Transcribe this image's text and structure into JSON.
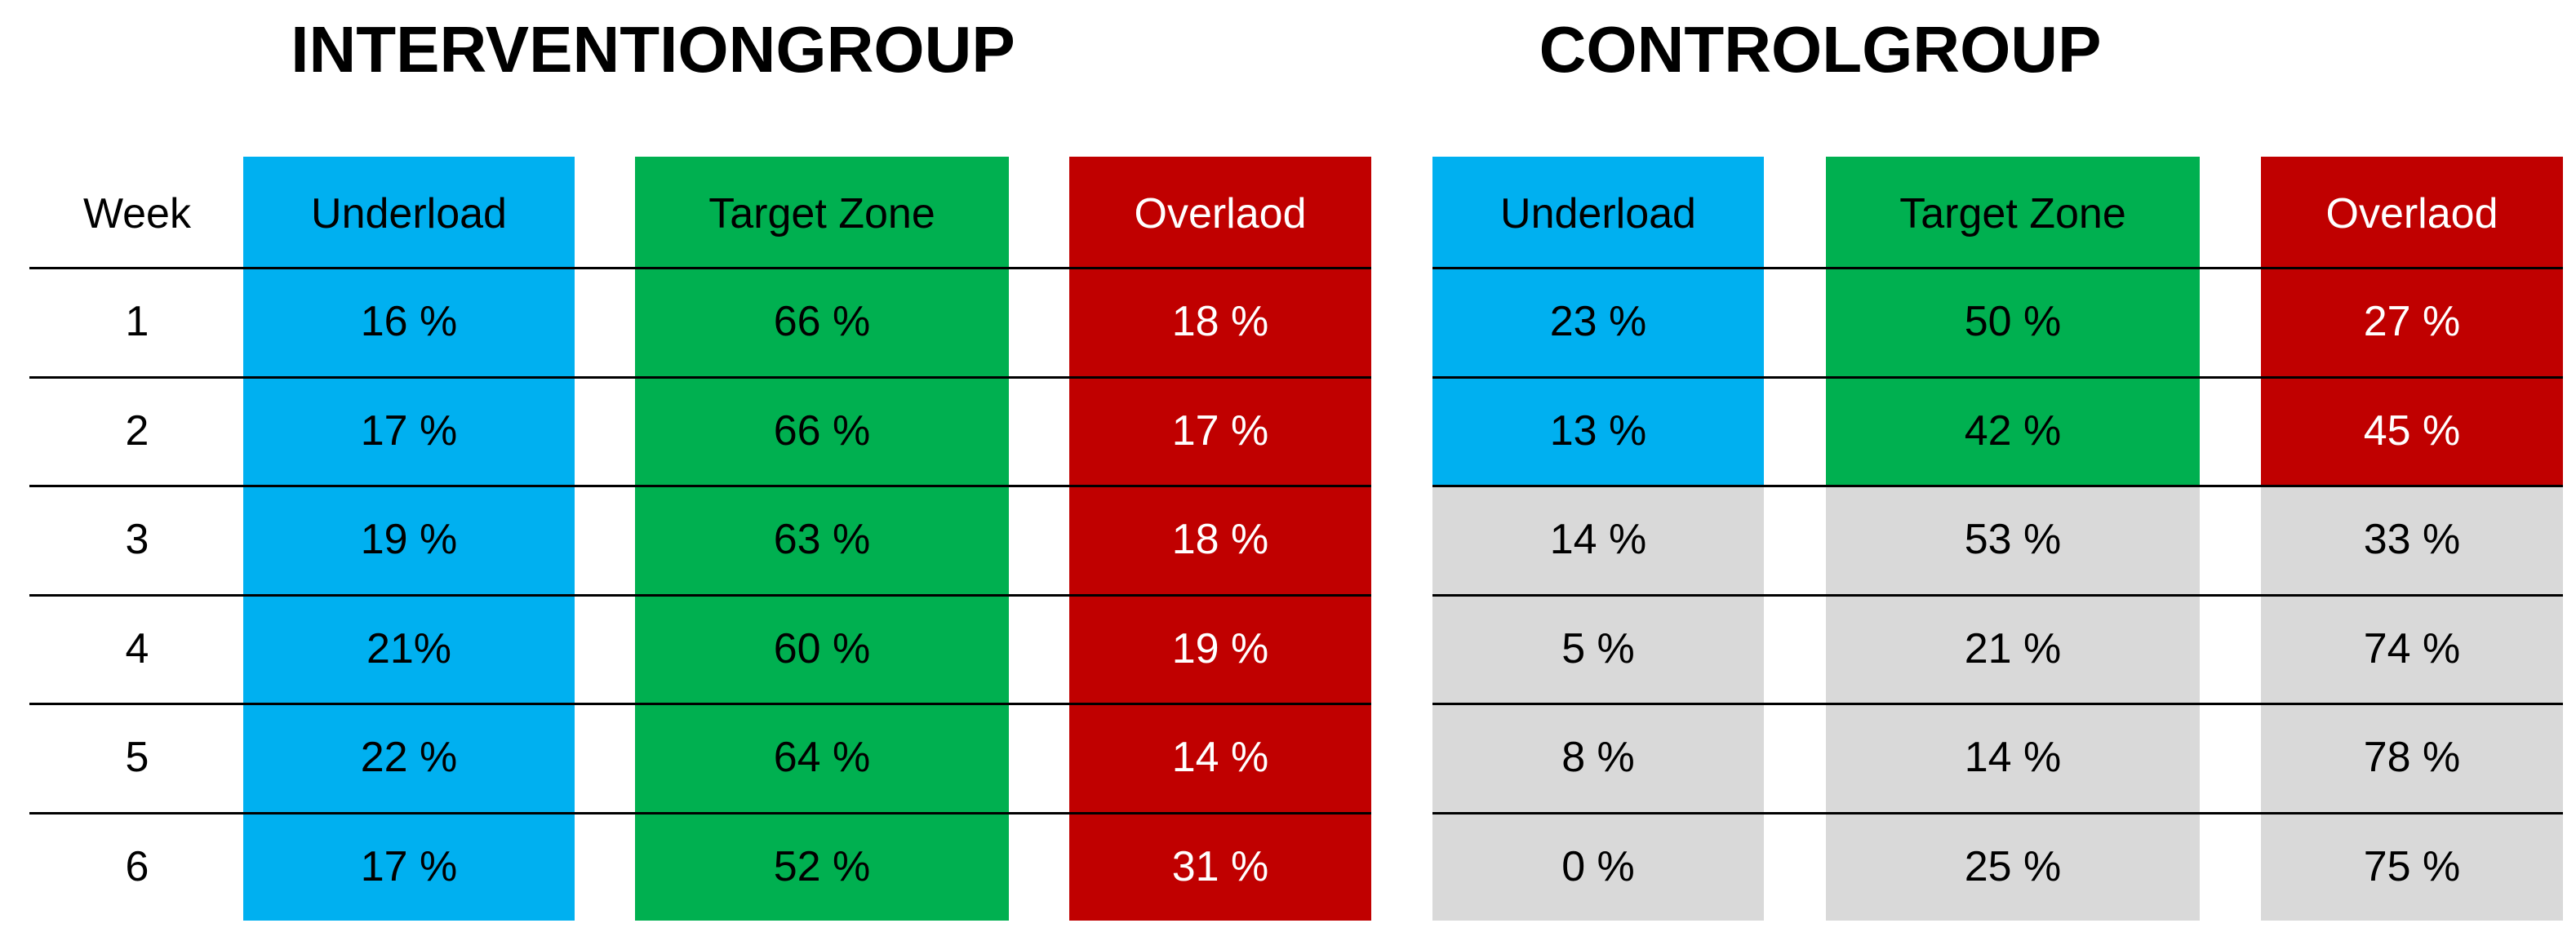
{
  "colors": {
    "underload": "#00b0f0",
    "target_zone": "#00b050",
    "overload": "#c00000",
    "no_data": "#d9d9d9"
  },
  "titles": {
    "intervention": "INTERVENTIONGROUP",
    "control": "CONTROLGROUP"
  },
  "week_header": "Week",
  "column_headers": [
    "Underload",
    "Target Zone",
    "Overlaod"
  ],
  "chart_data": {
    "type": "table",
    "columns": [
      "Week",
      "Underload",
      "Target Zone",
      "Overlaod",
      "Underload",
      "Target Zone",
      "Overlaod"
    ],
    "groups": [
      {
        "title": "INTERVENTIONGROUP",
        "columns": [
          "Underload",
          "Target Zone",
          "Overlaod"
        ],
        "rows": [
          {
            "week": "1",
            "values": [
              "16 %",
              "66 %",
              "18 %"
            ]
          },
          {
            "week": "2",
            "values": [
              "17 %",
              "66 %",
              "17 %"
            ]
          },
          {
            "week": "3",
            "values": [
              "19 %",
              "63 %",
              "18 %"
            ]
          },
          {
            "week": "4",
            "values": [
              "21%",
              "60 %",
              "19 %"
            ]
          },
          {
            "week": "5",
            "values": [
              "22 %",
              "64 %",
              "14 %"
            ]
          },
          {
            "week": "6",
            "values": [
              "17 %",
              "52 %",
              "31 %"
            ]
          }
        ]
      },
      {
        "title": "CONTROLGROUP",
        "columns": [
          "Underload",
          "Target Zone",
          "Overlaod"
        ],
        "colored_weeks": 2,
        "rows": [
          {
            "week": "1",
            "values": [
              "23 %",
              "50 %",
              "27 %"
            ]
          },
          {
            "week": "2",
            "values": [
              "13 %",
              "42 %",
              "45 %"
            ]
          },
          {
            "week": "3",
            "values": [
              "14 %",
              "53 %",
              "33 %"
            ]
          },
          {
            "week": "4",
            "values": [
              "5 %",
              "21 %",
              "74 %"
            ]
          },
          {
            "week": "5",
            "values": [
              "8 %",
              "14 %",
              "78 %"
            ]
          },
          {
            "week": "6",
            "values": [
              "0 %",
              "25 %",
              "75 %"
            ]
          }
        ]
      }
    ]
  }
}
